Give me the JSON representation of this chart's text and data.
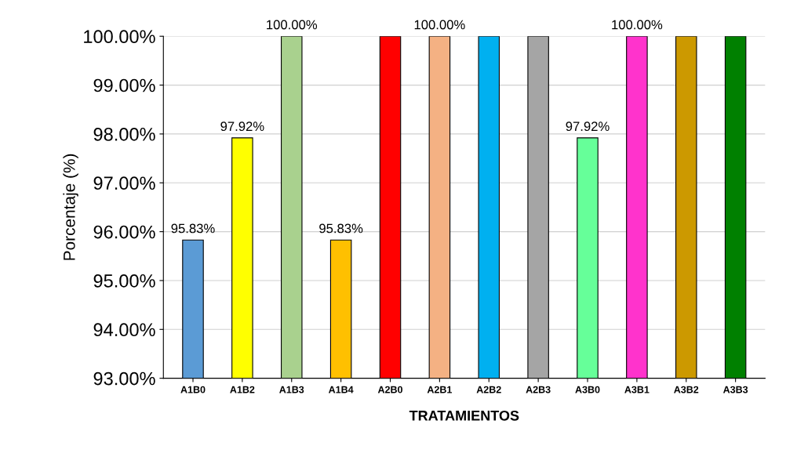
{
  "chart_data": {
    "type": "bar",
    "xlabel": "TRATAMIENTOS",
    "ylabel": "Porcentaje (%)",
    "categories": [
      "A1B0",
      "A1B2",
      "A1B3",
      "A1B4",
      "A2B0",
      "A2B1",
      "A2B2",
      "A2B3",
      "A3B0",
      "A3B1",
      "A3B2",
      "A3B3"
    ],
    "values": [
      95.83,
      97.92,
      100,
      95.83,
      100,
      100,
      100,
      100,
      97.92,
      100,
      100,
      100
    ],
    "colors": [
      "#5b9bd5",
      "#ffff00",
      "#a9d18e",
      "#ffc000",
      "#ff0000",
      "#f4b183",
      "#00b0f0",
      "#a5a5a5",
      "#66ff99",
      "#ff33cc",
      "#cc9900",
      "#008000"
    ],
    "value_labels": [
      "95.83%",
      "97.92%",
      "100.00%",
      "95.83%",
      null,
      "100.00%",
      null,
      null,
      "97.92%",
      "100.00%",
      null,
      null
    ],
    "ylim": [
      93,
      100
    ],
    "yticks": [
      {
        "value": 93,
        "label": "93.00%"
      },
      {
        "value": 94,
        "label": "94.00%"
      },
      {
        "value": 95,
        "label": "95.00%"
      },
      {
        "value": 96,
        "label": "96.00%"
      },
      {
        "value": 97,
        "label": "97.00%"
      },
      {
        "value": 98,
        "label": "98.00%"
      },
      {
        "value": 99,
        "label": "99.00%"
      },
      {
        "value": 100,
        "label": "100.00%"
      }
    ],
    "grid": "y",
    "legend": false
  }
}
